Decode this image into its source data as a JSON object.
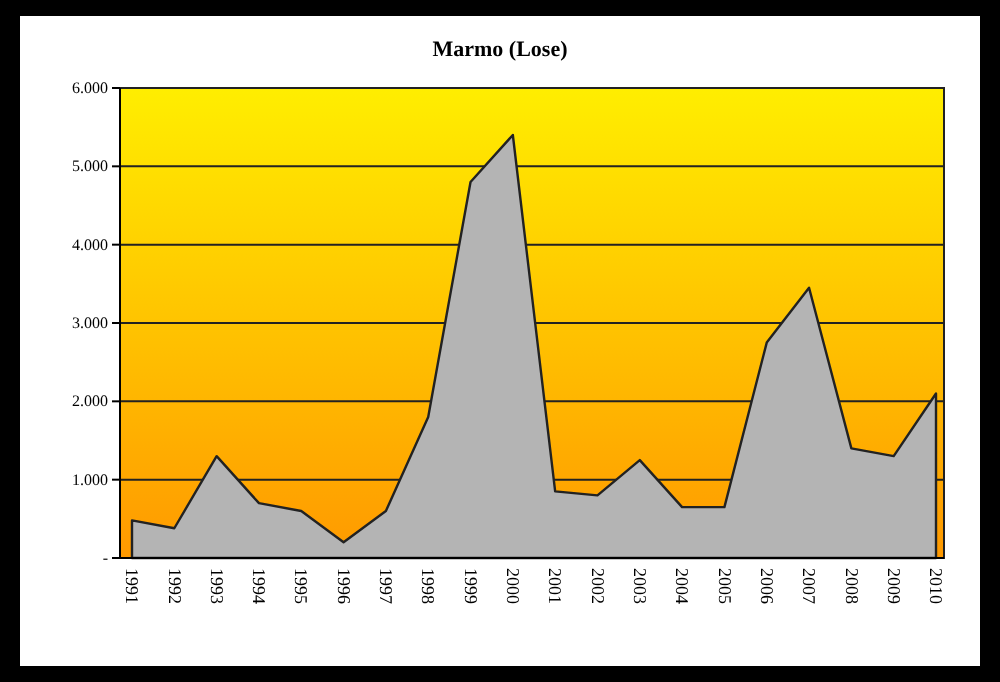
{
  "chart_data": {
    "type": "area",
    "title": "Marmo (Lose)",
    "categories": [
      "1991",
      "1992",
      "1993",
      "1994",
      "1995",
      "1996",
      "1997",
      "1998",
      "1999",
      "2000",
      "2001",
      "2002",
      "2003",
      "2004",
      "2005",
      "2006",
      "2007",
      "2008",
      "2009",
      "2010"
    ],
    "series": [
      {
        "color": "#b4b4b4",
        "values": [
          480,
          380,
          1300,
          700,
          600,
          200,
          600,
          1800,
          4800,
          5400,
          850,
          800,
          1250,
          650,
          650,
          2750,
          3450,
          1400,
          1300,
          2100
        ]
      }
    ],
    "ylim": [
      0,
      6000
    ],
    "yticks": [
      {
        "value": 0,
        "label": "-"
      },
      {
        "value": 1000,
        "label": "1.000"
      },
      {
        "value": 2000,
        "label": "2.000"
      },
      {
        "value": 3000,
        "label": "3.000"
      },
      {
        "value": 4000,
        "label": "4.000"
      },
      {
        "value": 5000,
        "label": "5.000"
      },
      {
        "value": 6000,
        "label": "6.000"
      }
    ],
    "grid": "y"
  }
}
